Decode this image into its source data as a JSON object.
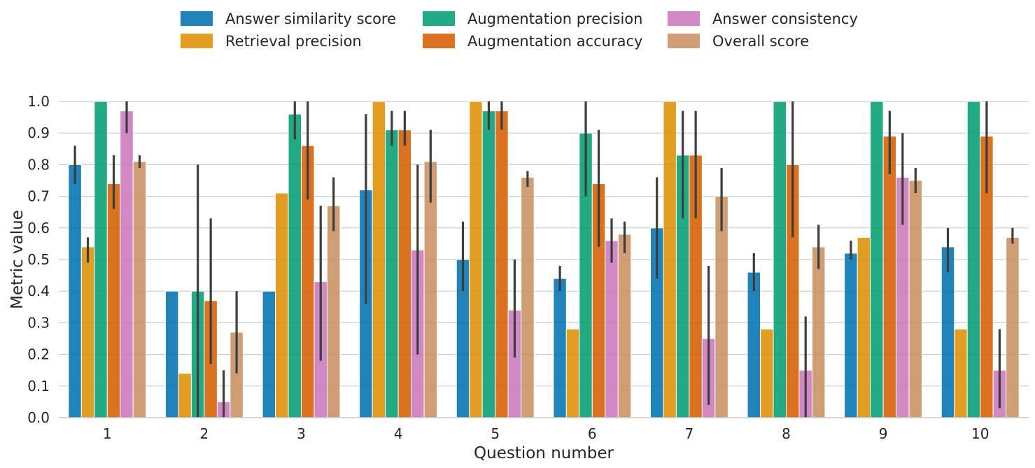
{
  "chart_data": {
    "type": "bar",
    "xlabel": "Question number",
    "ylabel": "Metric value",
    "ylim": [
      0,
      1.0
    ],
    "yticks": [
      "0.0",
      "0.1",
      "0.2",
      "0.3",
      "0.4",
      "0.5",
      "0.6",
      "0.7",
      "0.8",
      "0.9",
      "1.0"
    ],
    "grid": "horizontal",
    "legend_position": "top-center",
    "categories": [
      "1",
      "2",
      "3",
      "4",
      "5",
      "6",
      "7",
      "8",
      "9",
      "10"
    ],
    "series": [
      {
        "name": "Answer similarity score",
        "color": "#0173b2",
        "values": [
          0.8,
          0.4,
          0.4,
          0.72,
          0.5,
          0.44,
          0.6,
          0.46,
          0.52,
          0.54
        ],
        "errors": [
          [
            0.74,
            0.86
          ],
          null,
          null,
          [
            0.36,
            0.96
          ],
          [
            0.4,
            0.62
          ],
          [
            0.4,
            0.48
          ],
          [
            0.44,
            0.76
          ],
          [
            0.4,
            0.52
          ],
          [
            0.5,
            0.56
          ],
          [
            0.46,
            0.6
          ]
        ]
      },
      {
        "name": "Retrieval precision",
        "color": "#de8f05",
        "values": [
          0.54,
          0.14,
          0.71,
          1.0,
          1.0,
          0.28,
          1.0,
          0.28,
          0.57,
          0.28
        ],
        "errors": [
          [
            0.49,
            0.57
          ],
          null,
          null,
          null,
          null,
          null,
          null,
          null,
          null,
          null
        ]
      },
      {
        "name": "Augmentation precision",
        "color": "#029e73",
        "values": [
          1.0,
          0.4,
          0.96,
          0.91,
          0.97,
          0.9,
          0.83,
          1.0,
          1.0,
          1.0
        ],
        "errors": [
          null,
          [
            0.0,
            0.8
          ],
          [
            0.88,
            1.0
          ],
          [
            0.86,
            0.97
          ],
          [
            0.91,
            1.0
          ],
          [
            0.7,
            1.0
          ],
          [
            0.63,
            0.97
          ],
          null,
          null,
          null
        ]
      },
      {
        "name": "Augmentation accuracy",
        "color": "#d55e00",
        "values": [
          0.74,
          0.37,
          0.86,
          0.91,
          0.97,
          0.74,
          0.83,
          0.8,
          0.89,
          0.89
        ],
        "errors": [
          [
            0.66,
            0.83
          ],
          [
            0.17,
            0.63
          ],
          [
            0.69,
            1.0
          ],
          [
            0.86,
            0.97
          ],
          [
            0.91,
            1.0
          ],
          [
            0.54,
            0.91
          ],
          [
            0.63,
            0.97
          ],
          [
            0.57,
            1.0
          ],
          [
            0.77,
            0.97
          ],
          [
            0.71,
            1.0
          ]
        ]
      },
      {
        "name": "Answer consistency",
        "color": "#cc78bc",
        "values": [
          0.97,
          0.05,
          0.43,
          0.53,
          0.34,
          0.56,
          0.25,
          0.15,
          0.76,
          0.15
        ],
        "errors": [
          [
            0.9,
            1.0
          ],
          [
            0.0,
            0.15
          ],
          [
            0.18,
            0.67
          ],
          [
            0.2,
            0.8
          ],
          [
            0.19,
            0.5
          ],
          [
            0.49,
            0.63
          ],
          [
            0.04,
            0.48
          ],
          [
            0.0,
            0.32
          ],
          [
            0.61,
            0.9
          ],
          [
            0.03,
            0.28
          ]
        ]
      },
      {
        "name": "Overall score",
        "color": "#ca9161",
        "values": [
          0.81,
          0.27,
          0.67,
          0.81,
          0.76,
          0.58,
          0.7,
          0.54,
          0.75,
          0.57
        ],
        "errors": [
          [
            0.79,
            0.83
          ],
          [
            0.14,
            0.4
          ],
          [
            0.59,
            0.76
          ],
          [
            0.68,
            0.91
          ],
          [
            0.73,
            0.78
          ],
          [
            0.52,
            0.62
          ],
          [
            0.59,
            0.79
          ],
          [
            0.47,
            0.61
          ],
          [
            0.71,
            0.79
          ],
          [
            0.55,
            0.6
          ]
        ]
      }
    ]
  }
}
